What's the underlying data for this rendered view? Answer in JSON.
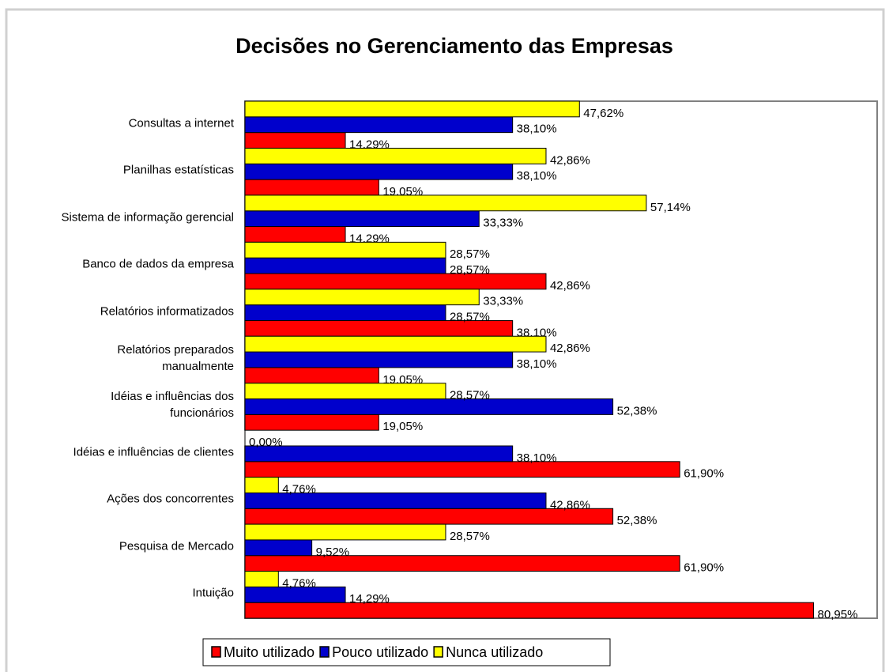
{
  "chart_data": {
    "type": "bar",
    "orientation": "horizontal",
    "title": "Decisões no Gerenciamento das Empresas",
    "categories": [
      "Consultas a internet",
      "Planilhas estatísticas",
      "Sistema de informação gerencial",
      "Banco de dados da empresa",
      "Relatórios informatizados",
      "Relatórios preparados\nmanualmente",
      "Idéias e influências dos\nfuncionários",
      "Idéias e influências de clientes",
      "Ações dos concorrentes",
      "Pesquisa de Mercado",
      "Intuição"
    ],
    "series": [
      {
        "name": "Muito utilizado",
        "color": "#ff0000",
        "values": [
          14.29,
          19.05,
          14.29,
          42.86,
          38.1,
          19.05,
          19.05,
          61.9,
          52.38,
          61.9,
          80.95
        ],
        "value_labels": [
          "14,29%",
          "19,05%",
          "14,29%",
          "42,86%",
          "38,10%",
          "19,05%",
          "19,05%",
          "61,90%",
          "52,38%",
          "61,90%",
          "80,95%"
        ]
      },
      {
        "name": "Pouco utilizado",
        "color": "#0000cc",
        "values": [
          38.1,
          38.1,
          33.33,
          28.57,
          28.57,
          38.1,
          52.38,
          38.1,
          42.86,
          9.52,
          14.29
        ],
        "value_labels": [
          "38,10%",
          "38,10%",
          "33,33%",
          "28,57%",
          "28,57%",
          "38,10%",
          "52,38%",
          "38,10%",
          "42,86%",
          "9,52%",
          "14,29%"
        ]
      },
      {
        "name": "Nunca utilizado",
        "color": "#ffff00",
        "values": [
          47.62,
          42.86,
          57.14,
          28.57,
          33.33,
          42.86,
          28.57,
          0.0,
          4.76,
          28.57,
          4.76
        ],
        "value_labels": [
          "47,62%",
          "42,86%",
          "57,14%",
          "28,57%",
          "33,33%",
          "42,86%",
          "28,57%",
          "0,00%",
          "4,76%",
          "28,57%",
          "4,76%"
        ]
      }
    ],
    "xlim": [
      0,
      90
    ],
    "legend": "bottom"
  }
}
